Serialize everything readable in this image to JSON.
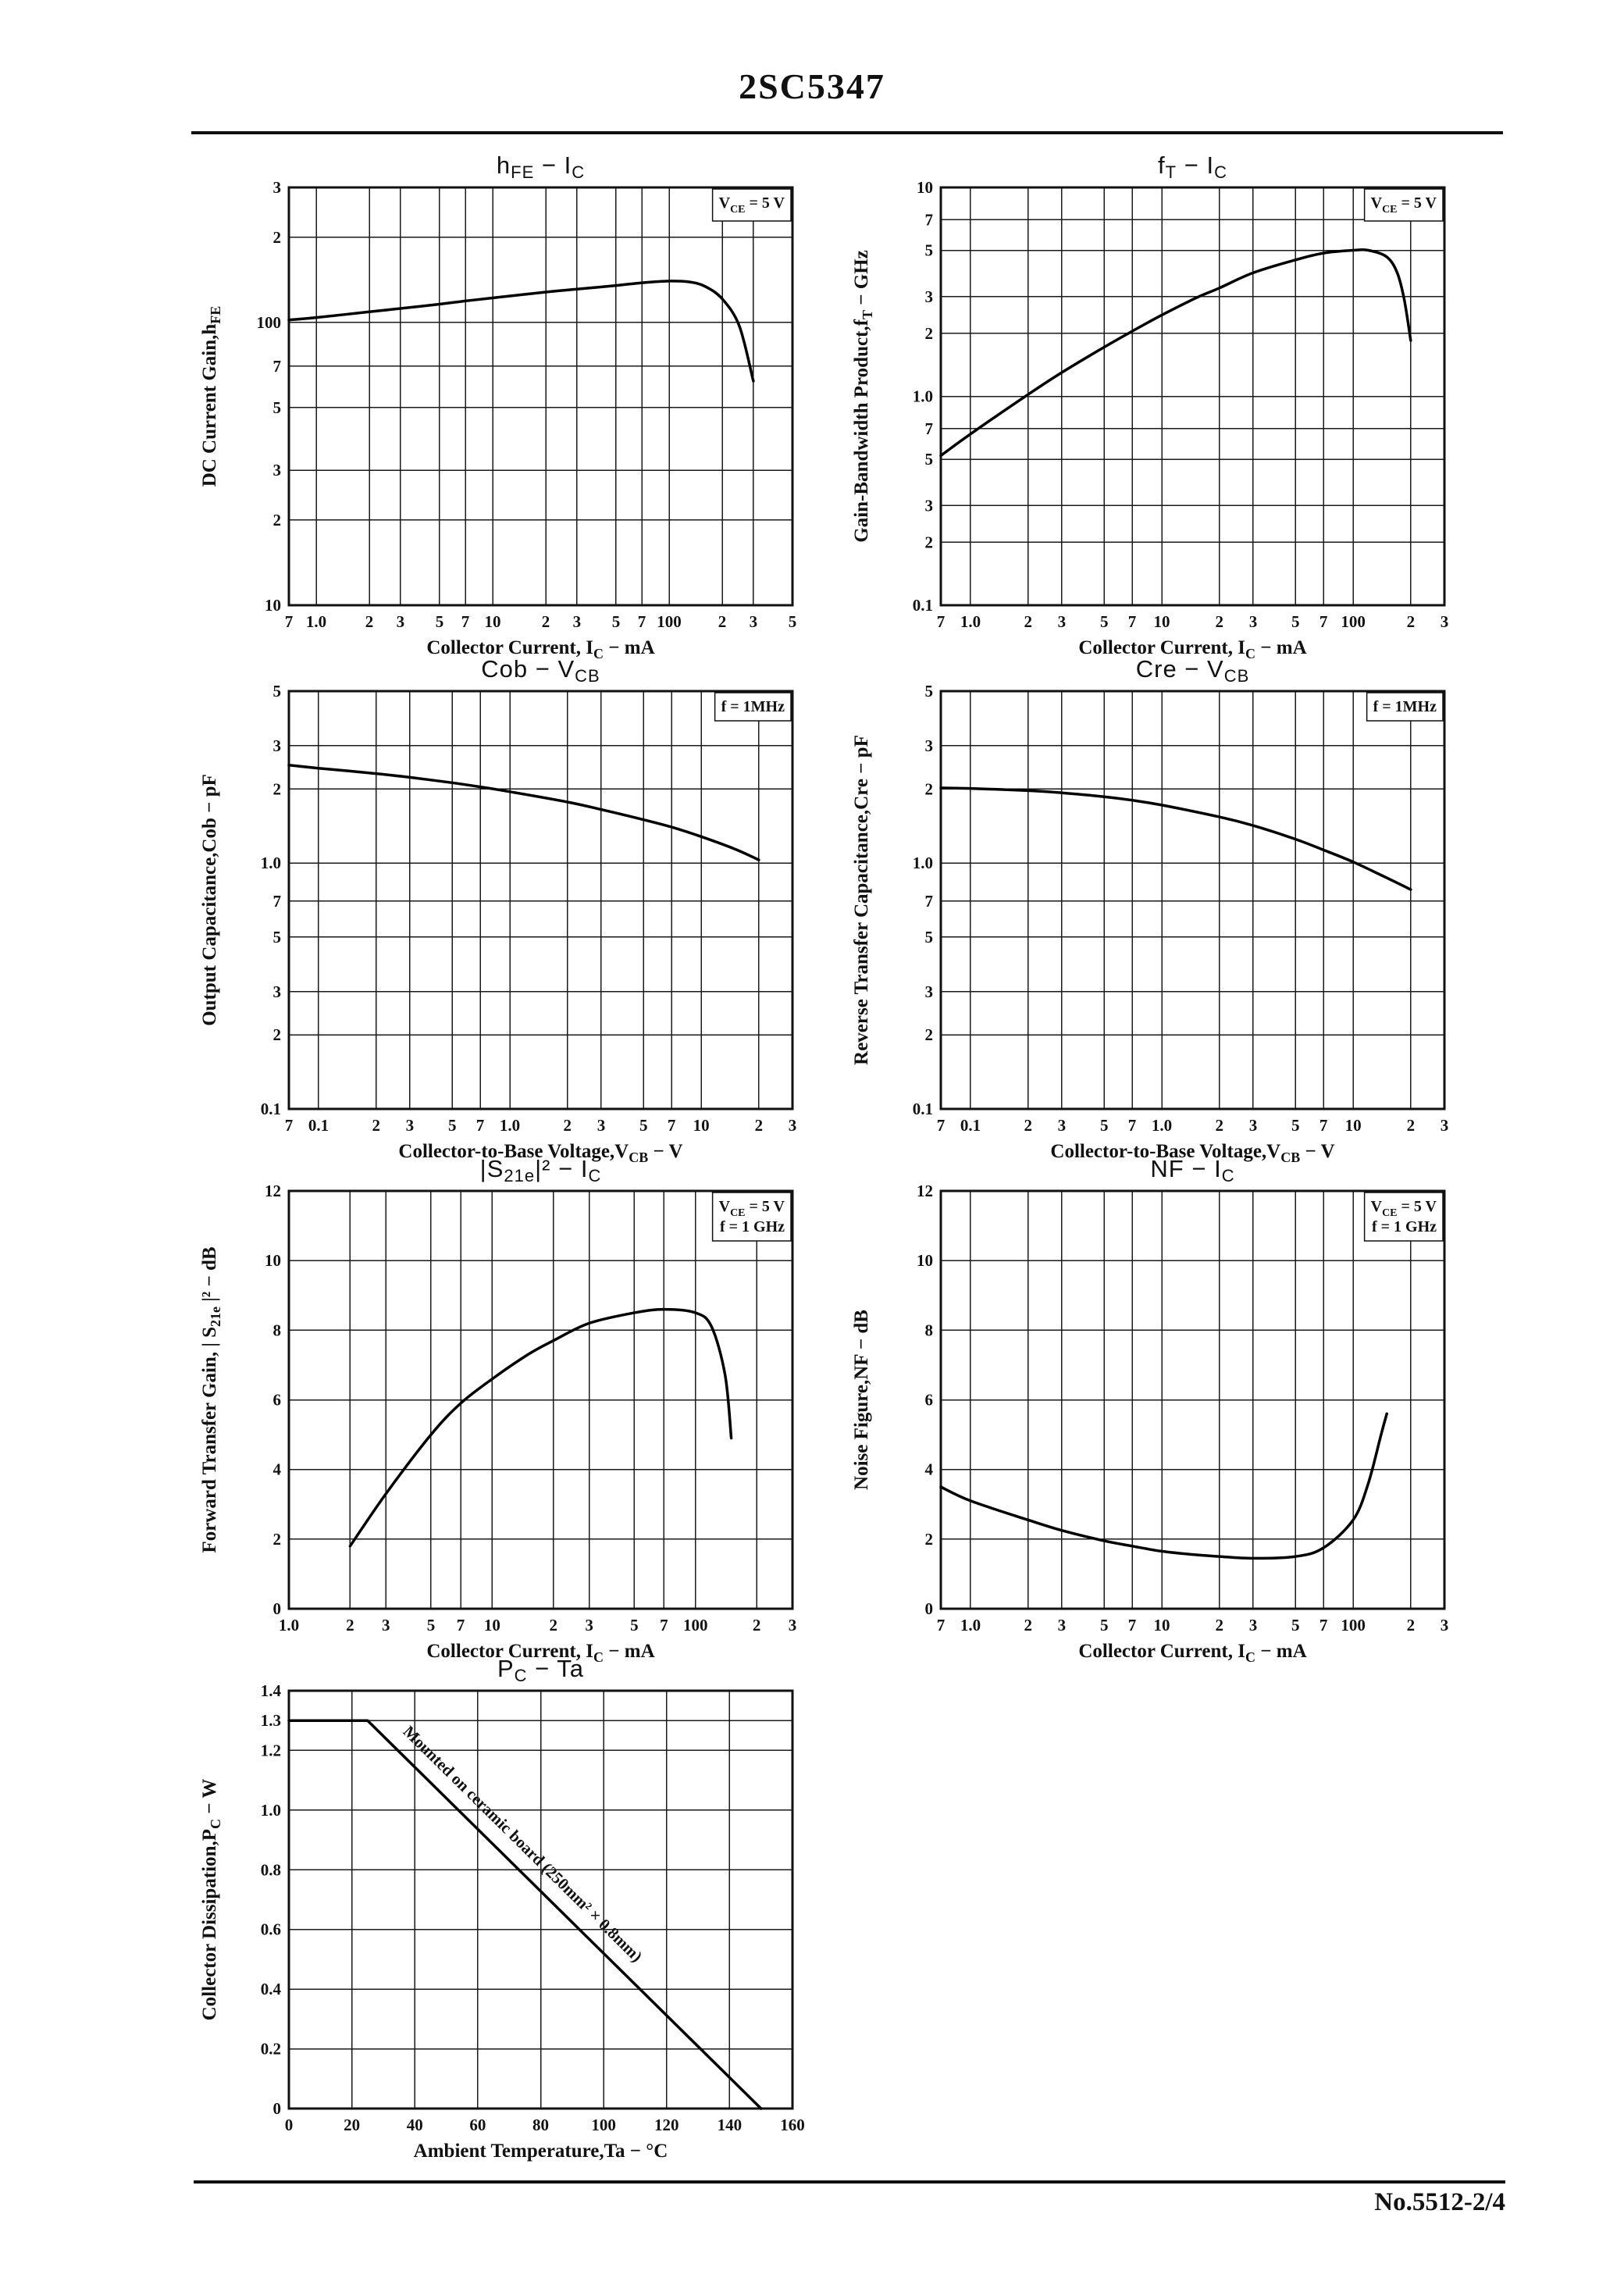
{
  "page": {
    "header_title": "2SC5347",
    "footer_text": "No.5512-2/4"
  },
  "chart_data": [
    {
      "id": "hfe-ic",
      "type": "line",
      "title": "h~FE~  −  I~C~",
      "xlabel": "Collector Current, I~C~ − mA",
      "ylabel": "DC Current Gain,h~FE~",
      "x_scale": "log",
      "y_scale": "log",
      "xlim": [
        0.7,
        500
      ],
      "ylim": [
        10,
        300
      ],
      "grid": true,
      "x_ticks": {
        "values": [
          0.7,
          1,
          2,
          3,
          5,
          7,
          10,
          20,
          30,
          50,
          70,
          100,
          200,
          300,
          500
        ],
        "labels": [
          "7",
          "1.0",
          "2",
          "3",
          "5",
          "7",
          "10",
          "2",
          "3",
          "5",
          "7",
          "100",
          "2",
          "3",
          "5"
        ]
      },
      "y_ticks": {
        "values": [
          10,
          20,
          30,
          50,
          70,
          100,
          200,
          300
        ],
        "labels": [
          "10",
          "2",
          "3",
          "5",
          "7",
          "100",
          "2",
          "3"
        ]
      },
      "annotations": [
        "V~CE~ = 5 V"
      ],
      "smooth": true,
      "points": [
        [
          0.7,
          102
        ],
        [
          1,
          104
        ],
        [
          2,
          109
        ],
        [
          3,
          112
        ],
        [
          5,
          116
        ],
        [
          7,
          119
        ],
        [
          10,
          122
        ],
        [
          20,
          128
        ],
        [
          30,
          131
        ],
        [
          50,
          135
        ],
        [
          70,
          138
        ],
        [
          100,
          140
        ],
        [
          130,
          139
        ],
        [
          160,
          134
        ],
        [
          200,
          121
        ],
        [
          250,
          97
        ],
        [
          300,
          62
        ]
      ]
    },
    {
      "id": "ft-ic",
      "type": "line",
      "title": "f~T~  −  I~C~",
      "xlabel": "Collector Current, I~C~ − mA",
      "ylabel": "Gain-Bandwidth Product,f~T~ − GHz",
      "x_scale": "log",
      "y_scale": "log",
      "xlim": [
        0.7,
        300
      ],
      "ylim": [
        0.1,
        10
      ],
      "grid": true,
      "x_ticks": {
        "values": [
          0.7,
          1,
          2,
          3,
          5,
          7,
          10,
          20,
          30,
          50,
          70,
          100,
          200,
          300
        ],
        "labels": [
          "7",
          "1.0",
          "2",
          "3",
          "5",
          "7",
          "10",
          "2",
          "3",
          "5",
          "7",
          "100",
          "2",
          "3"
        ]
      },
      "y_ticks": {
        "values": [
          0.1,
          0.2,
          0.3,
          0.5,
          0.7,
          1,
          2,
          3,
          5,
          7,
          10
        ],
        "labels": [
          "0.1",
          "2",
          "3",
          "5",
          "7",
          "1.0",
          "2",
          "3",
          "5",
          "7",
          "10"
        ]
      },
      "annotations": [
        "V~CE~ = 5 V"
      ],
      "smooth": true,
      "points": [
        [
          0.7,
          0.52
        ],
        [
          1,
          0.66
        ],
        [
          2,
          1.02
        ],
        [
          3,
          1.3
        ],
        [
          5,
          1.72
        ],
        [
          7,
          2.05
        ],
        [
          10,
          2.45
        ],
        [
          15,
          2.95
        ],
        [
          20,
          3.3
        ],
        [
          30,
          3.9
        ],
        [
          50,
          4.5
        ],
        [
          70,
          4.85
        ],
        [
          100,
          5.0
        ],
        [
          120,
          5.0
        ],
        [
          150,
          4.65
        ],
        [
          170,
          3.9
        ],
        [
          185,
          2.9
        ],
        [
          200,
          1.85
        ]
      ]
    },
    {
      "id": "cob-vcb",
      "type": "line",
      "title": "Cob  −  V~CB~",
      "xlabel": "Collector-to-Base Voltage,V~CB~ − V",
      "ylabel": "Output Capacitance,Cob − pF",
      "x_scale": "log",
      "y_scale": "log",
      "xlim": [
        0.07,
        30
      ],
      "ylim": [
        0.1,
        5
      ],
      "grid": true,
      "x_ticks": {
        "values": [
          0.07,
          0.1,
          0.2,
          0.3,
          0.5,
          0.7,
          1,
          2,
          3,
          5,
          7,
          10,
          20,
          30
        ],
        "labels": [
          "7",
          "0.1",
          "2",
          "3",
          "5",
          "7",
          "1.0",
          "2",
          "3",
          "5",
          "7",
          "10",
          "2",
          "3"
        ]
      },
      "y_ticks": {
        "values": [
          0.1,
          0.2,
          0.3,
          0.5,
          0.7,
          1,
          2,
          3,
          5
        ],
        "labels": [
          "0.1",
          "2",
          "3",
          "5",
          "7",
          "1.0",
          "2",
          "3",
          "5"
        ]
      },
      "annotations": [
        "f = 1MHz"
      ],
      "smooth": true,
      "points": [
        [
          0.07,
          2.5
        ],
        [
          0.1,
          2.43
        ],
        [
          0.2,
          2.31
        ],
        [
          0.3,
          2.23
        ],
        [
          0.5,
          2.12
        ],
        [
          0.7,
          2.04
        ],
        [
          1,
          1.95
        ],
        [
          2,
          1.77
        ],
        [
          3,
          1.65
        ],
        [
          5,
          1.5
        ],
        [
          7,
          1.4
        ],
        [
          10,
          1.28
        ],
        [
          15,
          1.14
        ],
        [
          20,
          1.03
        ]
      ]
    },
    {
      "id": "cre-vcb",
      "type": "line",
      "title": "Cre  −  V~CB~",
      "xlabel": "Collector-to-Base Voltage,V~CB~ − V",
      "ylabel": "Reverse Transfer Capacitance,Cre − pF",
      "x_scale": "log",
      "y_scale": "log",
      "xlim": [
        0.07,
        30
      ],
      "ylim": [
        0.1,
        5
      ],
      "grid": true,
      "x_ticks": {
        "values": [
          0.07,
          0.1,
          0.2,
          0.3,
          0.5,
          0.7,
          1,
          2,
          3,
          5,
          7,
          10,
          20,
          30
        ],
        "labels": [
          "7",
          "0.1",
          "2",
          "3",
          "5",
          "7",
          "1.0",
          "2",
          "3",
          "5",
          "7",
          "10",
          "2",
          "3"
        ]
      },
      "y_ticks": {
        "values": [
          0.1,
          0.2,
          0.3,
          0.5,
          0.7,
          1,
          2,
          3,
          5
        ],
        "labels": [
          "0.1",
          "2",
          "3",
          "5",
          "7",
          "1.0",
          "2",
          "3",
          "5"
        ]
      },
      "annotations": [
        "f = 1MHz"
      ],
      "smooth": true,
      "points": [
        [
          0.07,
          2.02
        ],
        [
          0.1,
          2.01
        ],
        [
          0.2,
          1.97
        ],
        [
          0.3,
          1.93
        ],
        [
          0.5,
          1.86
        ],
        [
          0.7,
          1.8
        ],
        [
          1,
          1.72
        ],
        [
          2,
          1.54
        ],
        [
          3,
          1.42
        ],
        [
          5,
          1.25
        ],
        [
          7,
          1.13
        ],
        [
          10,
          1.01
        ],
        [
          15,
          0.87
        ],
        [
          20,
          0.78
        ]
      ]
    },
    {
      "id": "s21e-ic",
      "type": "line",
      "title": "|S~21e~|²  −  I~C~",
      "xlabel": "Collector Current, I~C~ − mA",
      "ylabel": "Forward Transfer Gain, | S~21e~ |² − dB",
      "x_scale": "log",
      "y_scale": "linear",
      "xlim": [
        1,
        300
      ],
      "ylim": [
        0,
        12
      ],
      "grid": true,
      "x_ticks": {
        "values": [
          1,
          2,
          3,
          5,
          7,
          10,
          20,
          30,
          50,
          70,
          100,
          200,
          300
        ],
        "labels": [
          "1.0",
          "2",
          "3",
          "5",
          "7",
          "10",
          "2",
          "3",
          "5",
          "7",
          "100",
          "2",
          "3"
        ]
      },
      "y_ticks": {
        "values": [
          0,
          2,
          4,
          6,
          8,
          10,
          12
        ],
        "labels": [
          "0",
          "2",
          "4",
          "6",
          "8",
          "10",
          "12"
        ]
      },
      "annotations": [
        "V~CE~ = 5 V",
        "f = 1 GHz"
      ],
      "smooth": true,
      "points": [
        [
          2,
          1.8
        ],
        [
          3,
          3.3
        ],
        [
          5,
          5.0
        ],
        [
          7,
          5.9
        ],
        [
          10,
          6.6
        ],
        [
          15,
          7.3
        ],
        [
          20,
          7.7
        ],
        [
          30,
          8.2
        ],
        [
          50,
          8.5
        ],
        [
          70,
          8.6
        ],
        [
          100,
          8.5
        ],
        [
          120,
          8.1
        ],
        [
          140,
          6.7
        ],
        [
          150,
          4.9
        ]
      ]
    },
    {
      "id": "nf-ic",
      "type": "line",
      "title": "NF  −  I~C~",
      "xlabel": "Collector Current, I~C~ − mA",
      "ylabel": "Noise Figure,NF − dB",
      "x_scale": "log",
      "y_scale": "linear",
      "xlim": [
        0.7,
        300
      ],
      "ylim": [
        0,
        12
      ],
      "grid": true,
      "x_ticks": {
        "values": [
          0.7,
          1,
          2,
          3,
          5,
          7,
          10,
          20,
          30,
          50,
          70,
          100,
          200,
          300
        ],
        "labels": [
          "7",
          "1.0",
          "2",
          "3",
          "5",
          "7",
          "10",
          "2",
          "3",
          "5",
          "7",
          "100",
          "2",
          "3"
        ]
      },
      "y_ticks": {
        "values": [
          0,
          2,
          4,
          6,
          8,
          10,
          12
        ],
        "labels": [
          "0",
          "2",
          "4",
          "6",
          "8",
          "10",
          "12"
        ]
      },
      "annotations": [
        "V~CE~ = 5 V",
        "f = 1 GHz"
      ],
      "smooth": true,
      "points": [
        [
          0.7,
          3.5
        ],
        [
          1,
          3.1
        ],
        [
          2,
          2.55
        ],
        [
          3,
          2.25
        ],
        [
          5,
          1.95
        ],
        [
          7,
          1.8
        ],
        [
          10,
          1.65
        ],
        [
          15,
          1.55
        ],
        [
          20,
          1.5
        ],
        [
          30,
          1.45
        ],
        [
          50,
          1.5
        ],
        [
          70,
          1.75
        ],
        [
          100,
          2.55
        ],
        [
          120,
          3.6
        ],
        [
          140,
          5.0
        ],
        [
          150,
          5.6
        ]
      ]
    },
    {
      "id": "pc-ta",
      "type": "line",
      "title": "P~C~  −  Ta",
      "xlabel": "Ambient Temperature,Ta − °C",
      "ylabel": "Collector Dissipation,P~C~ − W",
      "x_scale": "linear",
      "y_scale": "linear",
      "xlim": [
        0,
        160
      ],
      "ylim": [
        0,
        1.4
      ],
      "grid": true,
      "x_ticks": {
        "values": [
          0,
          20,
          40,
          60,
          80,
          100,
          120,
          140,
          160
        ],
        "labels": [
          "0",
          "20",
          "40",
          "60",
          "80",
          "100",
          "120",
          "140",
          "160"
        ]
      },
      "y_ticks": {
        "values": [
          0,
          0.2,
          0.4,
          0.6,
          0.8,
          1.0,
          1.2,
          1.3,
          1.4
        ],
        "labels": [
          "0",
          "0.2",
          "0.4",
          "0.6",
          "0.8",
          "1.0",
          "1.2",
          "1.3",
          "1.4"
        ]
      },
      "annotations": [],
      "smooth": false,
      "points": [
        [
          0,
          1.3
        ],
        [
          25,
          1.3
        ],
        [
          150,
          0
        ]
      ],
      "line_annotation": {
        "text": "Mounted on ceramic board (250mm² × 0.8mm)",
        "at": [
          36,
          1.26
        ]
      }
    }
  ]
}
